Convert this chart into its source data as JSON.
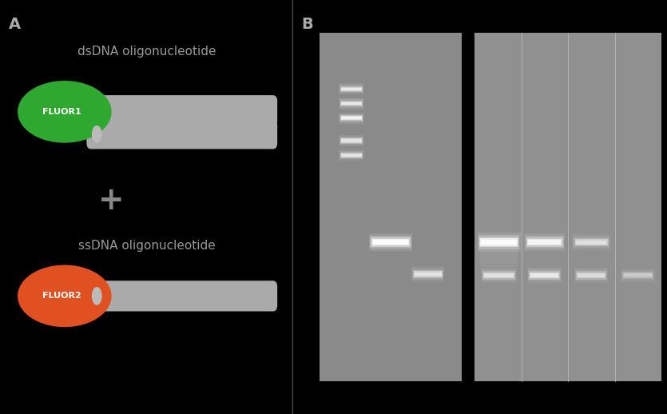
{
  "panel_A_label": "A",
  "panel_B_label": "B",
  "background_color": "#000000",
  "label_color": "#aaaaaa",
  "ds_label": "dsDNA oligonucleotide",
  "ss_label": "ssDNA oligonucleotide",
  "fluor1_text": "FLUOR1",
  "fluor2_text": "FLUOR2",
  "fluor1_color": "#2ea82e",
  "fluor2_color": "#e05020",
  "strand_color": "#aaaaaa",
  "plus_color": "#888888",
  "text_color": "#999999",
  "divider_color": "#555555",
  "gel1_bg": "#8a8a8a",
  "gel2_bg": "#909090",
  "band_color": "#ffffff",
  "divider_line_color": "#cccccc"
}
